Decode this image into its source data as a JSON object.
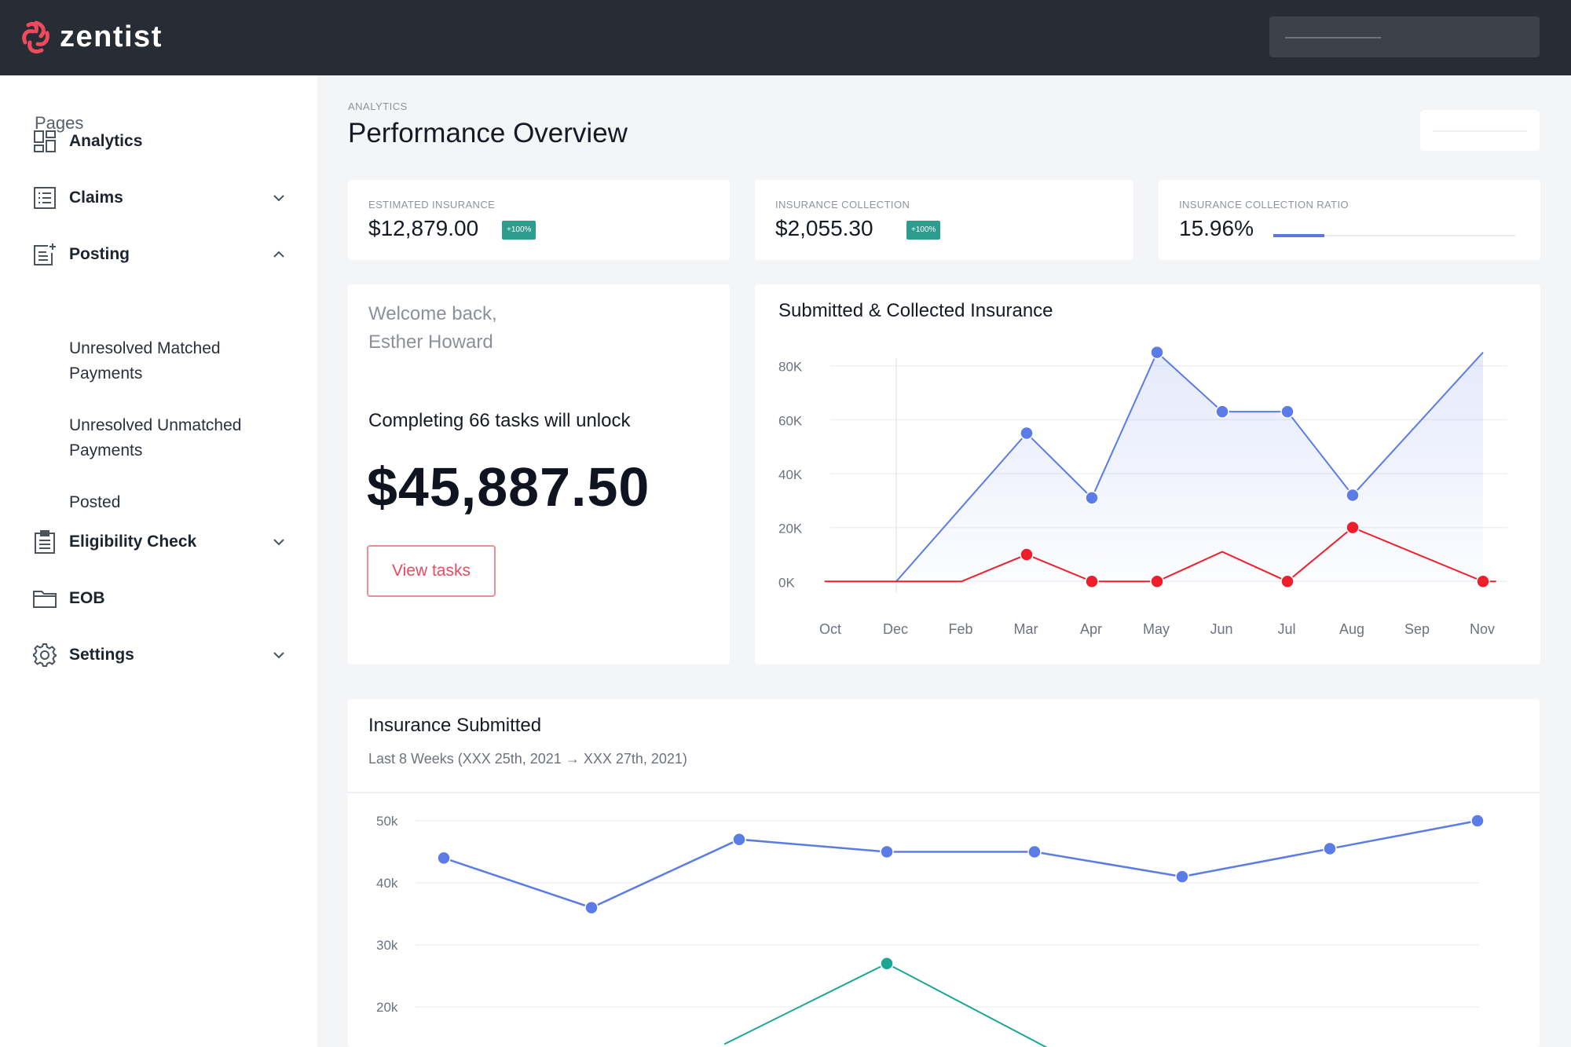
{
  "app": {
    "brand": "zentist"
  },
  "sidebar": {
    "pages_label": "Pages",
    "items": [
      {
        "label": "Analytics",
        "icon": "dashboard-icon"
      },
      {
        "label": "Claims",
        "icon": "list-icon"
      },
      {
        "label": "Posting",
        "icon": "posting-icon"
      },
      {
        "label": "Eligibility Check",
        "icon": "clipboard-icon"
      },
      {
        "label": "EOB",
        "icon": "folder-icon"
      },
      {
        "label": "Settings",
        "icon": "gear-icon"
      }
    ],
    "posting_sub": [
      {
        "line1": "Unresolved Matched",
        "line2": "Payments"
      },
      {
        "line1": "Unresolved Unmatched",
        "line2": "Payments"
      },
      {
        "line1": "Posted",
        "line2": ""
      }
    ]
  },
  "header": {
    "breadcrumb": "ANALYTICS",
    "title": "Performance Overview"
  },
  "stats": [
    {
      "label": "ESTIMATED INSURANCE",
      "value": "$12,879.00",
      "badge": "+100%"
    },
    {
      "label": "INSURANCE COLLECTION",
      "value": "$2,055.30",
      "badge": "+100%"
    },
    {
      "label": "INSURANCE COLLECTION RATIO",
      "value": "15.96%",
      "ratio": 0.21
    }
  ],
  "welcome": {
    "greeting": "Welcome back,",
    "name": "Esther Howard",
    "unlock_text": "Completing 66 tasks will unlock",
    "amount": "$45,887.50",
    "button": "View tasks"
  },
  "colors": {
    "blue": "#5b7be6",
    "red": "#ee1e2a",
    "teal": "#1aa596",
    "accent": "#e84b5e"
  },
  "chart_data": [
    {
      "type": "line",
      "title": "Submitted & Collected Insurance",
      "categories": [
        "Oct",
        "Dec",
        "Feb",
        "Mar",
        "Apr",
        "May",
        "Jun",
        "Jul",
        "Aug",
        "Sep",
        "Nov"
      ],
      "y_ticks": [
        "80K",
        "60K",
        "40K",
        "20K",
        "0K"
      ],
      "ylim": [
        -4000,
        84000
      ],
      "grid": true,
      "series": [
        {
          "name": "",
          "color": "#5b7be6",
          "area": true,
          "points": [
            [
              1,
              0
            ],
            [
              3,
              55000
            ],
            [
              4,
              31000
            ],
            [
              5,
              85000
            ],
            [
              6,
              63000
            ],
            [
              7,
              63000
            ],
            [
              8,
              32000
            ],
            [
              10,
              85000
            ]
          ],
          "markers": [
            3,
            4,
            5,
            6,
            7,
            8
          ]
        },
        {
          "name": "",
          "color": "#ee1e2a",
          "points": [
            [
              -0.1,
              0
            ],
            [
              2,
              0
            ],
            [
              3,
              10000
            ],
            [
              4,
              0
            ],
            [
              5,
              0
            ],
            [
              6,
              11000
            ],
            [
              7,
              0
            ],
            [
              8,
              20000
            ],
            [
              10,
              0
            ],
            [
              10.2,
              0
            ]
          ],
          "markers": [
            3,
            4,
            5,
            7,
            8,
            10
          ]
        }
      ]
    },
    {
      "type": "line",
      "title": "Insurance Submitted",
      "subtitle": "Last 8 Weeks (XXX 25th, 2021 → XXX 27th, 2021)",
      "y_ticks": [
        "50k",
        "40k",
        "30k",
        "20k"
      ],
      "ylim": [
        10000,
        52000
      ],
      "grid": true,
      "series": [
        {
          "name": "",
          "color": "#5b7be6",
          "values": [
            44000,
            36000,
            47000,
            45000,
            45000,
            41000,
            45500,
            50000
          ]
        },
        {
          "name": "",
          "color": "#1aa596",
          "points": [
            [
              1.9,
              14000
            ],
            [
              3,
              27000
            ],
            [
              4.2,
              12000
            ]
          ],
          "markers": [
            3
          ]
        }
      ]
    }
  ]
}
